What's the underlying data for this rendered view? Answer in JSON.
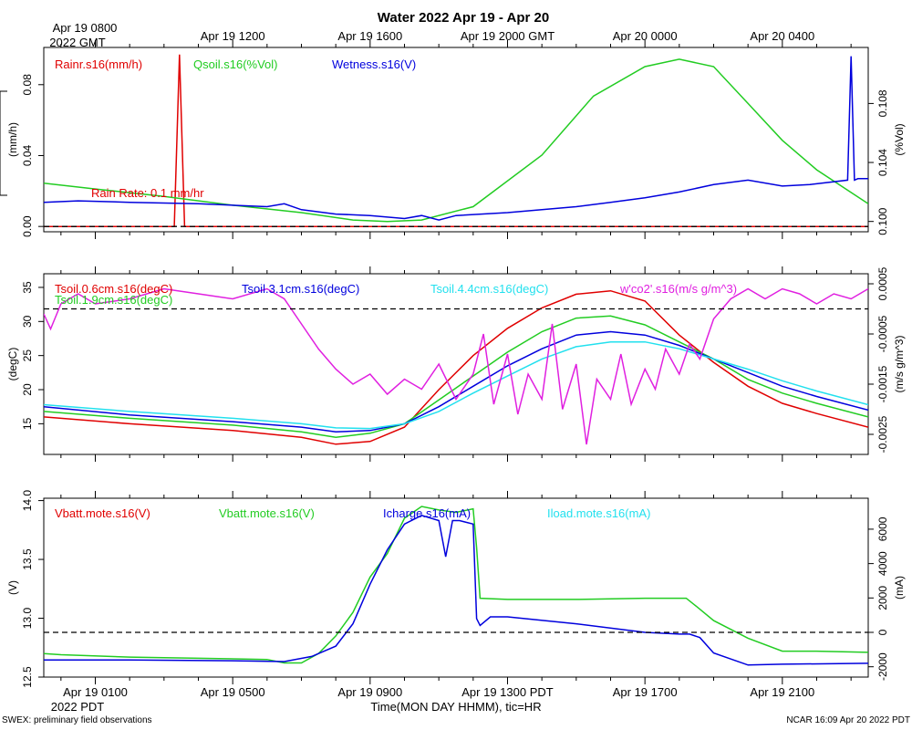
{
  "title": "Water 2022 Apr 19 - Apr 20",
  "top_axis": {
    "first_label_line1": "Apr 19 0800",
    "first_label_line2": "2022 GMT",
    "labels": [
      "Apr 19 1200",
      "Apr 19 1600",
      "Apr 19 2000 GMT",
      "Apr 20 0000",
      "Apr 20 0400"
    ]
  },
  "bottom_axis": {
    "labels": [
      "Apr 19 0100",
      "Apr 19 0500",
      "Apr 19 0900",
      "Apr 19 1300 PDT",
      "Apr 19 1700",
      "Apr 19 2100"
    ],
    "year_label": "2022 PDT",
    "xlabel": "Time(MON DAY HHMM), tic=HR"
  },
  "footer": {
    "left": "SWEX: preliminary field observations",
    "right": "NCAR 16:09 Apr 20 2022 PDT"
  },
  "colors": {
    "red": "#e00000",
    "green": "#22cc22",
    "blue": "#0000dd",
    "cyan": "#22e0ee",
    "magenta": "#e020e0",
    "black": "#000000"
  },
  "chart_data": [
    {
      "type": "line",
      "title": "Water panel",
      "x_range_hours_pdt": [
        22.5,
        46.5
      ],
      "left_axis": {
        "label": "(mm/h)",
        "ticks": [
          "0.00",
          "0.04",
          "0.08"
        ],
        "tick_values": [
          0.0,
          0.04,
          0.08
        ],
        "range": [
          -0.003,
          0.101
        ]
      },
      "right_axis": {
        "label": "(%Vol)",
        "ticks": [
          "0.100",
          "0.104",
          "0.108"
        ],
        "tick_values": [
          0.1,
          0.104,
          0.108
        ],
        "range": [
          0.0993,
          0.1118
        ]
      },
      "annotation": "Rain Rate: 0.1 mm/hr",
      "series": [
        {
          "name": "Rainr.s16(mm/h)",
          "color": "red",
          "axis": "left",
          "x": [
            22.5,
            26.3,
            26.45,
            26.6,
            26.75,
            46.5
          ],
          "values": [
            0,
            0,
            0.097,
            0,
            0,
            0
          ]
        },
        {
          "name": "Qsoil.s16(%Vol)",
          "color": "green",
          "axis": "right",
          "x": [
            22.5,
            24,
            26,
            28,
            30,
            31.5,
            32.5,
            33.5,
            35,
            37,
            38.5,
            40,
            41,
            42,
            43,
            44,
            45,
            46.5
          ],
          "values": [
            0.1026,
            0.1022,
            0.1017,
            0.1011,
            0.1006,
            0.1001,
            0.1,
            0.1001,
            0.101,
            0.1045,
            0.1085,
            0.1105,
            0.111,
            0.1105,
            0.108,
            0.1055,
            0.1035,
            0.1012
          ]
        },
        {
          "name": "Wetness.s16(V)",
          "color": "blue",
          "axis": "right",
          "x": [
            22.5,
            23.5,
            25,
            27,
            29,
            29.5,
            30,
            31,
            32,
            33,
            33.5,
            34,
            34.5,
            36,
            37,
            38,
            39,
            40,
            41,
            42,
            43,
            44,
            44.8,
            45.9,
            46.0,
            46.1,
            46.2,
            46.5
          ],
          "values": [
            0.1013,
            0.1014,
            0.1013,
            0.1012,
            0.101,
            0.1012,
            0.1008,
            0.1005,
            0.1004,
            0.1002,
            0.1004,
            0.1001,
            0.1004,
            0.1006,
            0.1008,
            0.101,
            0.1013,
            0.1016,
            0.102,
            0.1025,
            0.1028,
            0.1024,
            0.1025,
            0.1028,
            0.1112,
            0.1028,
            0.1029,
            0.1029
          ]
        }
      ],
      "reference_line": {
        "axis": "left",
        "value": 0.0,
        "color": "black",
        "style": "dashed"
      }
    },
    {
      "type": "line",
      "title": "Soil temperature panel",
      "x_range_hours_pdt": [
        22.5,
        46.5
      ],
      "left_axis": {
        "label": "(degC)",
        "ticks": [
          "15",
          "20",
          "25",
          "30",
          "35"
        ],
        "tick_values": [
          15,
          20,
          25,
          30,
          35
        ],
        "range": [
          10.5,
          37
        ]
      },
      "right_axis": {
        "label": "(m/s g/m^3)",
        "ticks": [
          "-0.0025",
          "-0.0015",
          "-0.0005",
          "0.0005"
        ],
        "tick_values": [
          -0.0025,
          -0.0015,
          -0.0005,
          0.0005
        ],
        "range": [
          -0.0029,
          0.0007
        ]
      },
      "series": [
        {
          "name": "Tsoil.0.6cm.s16(degC)",
          "color": "red",
          "axis": "left",
          "x": [
            22.5,
            25,
            28,
            30,
            31,
            32,
            33,
            34,
            35,
            36,
            37,
            38,
            39,
            40,
            41,
            42,
            43,
            44,
            45,
            46.5
          ],
          "values": [
            16.0,
            15.0,
            14.0,
            13.0,
            12.0,
            12.4,
            14.5,
            20.0,
            25.0,
            29.0,
            32.0,
            34.0,
            34.5,
            33.0,
            28.0,
            24.0,
            20.5,
            18.0,
            16.5,
            14.5
          ]
        },
        {
          "name": "Tsoil.1.9cm.s16(degC)",
          "color": "green",
          "axis": "left",
          "x": [
            22.5,
            25,
            28,
            30,
            31,
            32,
            33,
            34,
            35,
            36,
            37,
            38,
            39,
            40,
            41,
            42,
            43,
            44,
            45,
            46.5
          ],
          "values": [
            16.8,
            15.8,
            14.8,
            13.8,
            13.0,
            13.6,
            15.0,
            18.5,
            22.0,
            25.5,
            28.5,
            30.5,
            30.8,
            29.5,
            27.0,
            24.5,
            21.5,
            19.5,
            18.0,
            16.0
          ]
        },
        {
          "name": "Tsoil.3.1cm.s16(degC)",
          "color": "blue",
          "axis": "left",
          "x": [
            22.5,
            25,
            28,
            30,
            31,
            32,
            33,
            34,
            35,
            36,
            37,
            38,
            39,
            40,
            41,
            42,
            43,
            44,
            45,
            46.5
          ],
          "values": [
            17.5,
            16.3,
            15.3,
            14.5,
            13.8,
            14.0,
            15.0,
            17.5,
            20.5,
            23.5,
            26.0,
            28.0,
            28.5,
            28.0,
            26.5,
            24.5,
            22.5,
            20.5,
            19.0,
            17.0
          ]
        },
        {
          "name": "Tsoil.4.4cm.s16(degC)",
          "color": "cyan",
          "axis": "left",
          "x": [
            22.5,
            25,
            28,
            30,
            31,
            32,
            33,
            34,
            35,
            36,
            37,
            38,
            39,
            40,
            41,
            42,
            43,
            44,
            45,
            46.5
          ],
          "values": [
            17.8,
            16.8,
            15.8,
            15.0,
            14.4,
            14.3,
            15.0,
            16.8,
            19.5,
            22.0,
            24.5,
            26.3,
            27.0,
            27.0,
            26.0,
            24.5,
            23.0,
            21.3,
            19.8,
            17.8
          ]
        },
        {
          "name": "w'co2'.s16(m/s g/m^3)",
          "color": "magenta",
          "axis": "right",
          "x": [
            22.5,
            22.7,
            23,
            23.5,
            24,
            25,
            26,
            27,
            28,
            29,
            29.5,
            30,
            30.5,
            31,
            31.5,
            32,
            32.5,
            33,
            33.5,
            34,
            34.5,
            35,
            35.3,
            35.6,
            36,
            36.3,
            36.6,
            37,
            37.3,
            37.6,
            38,
            38.3,
            38.6,
            39,
            39.3,
            39.6,
            40,
            40.3,
            40.6,
            41,
            41.3,
            41.6,
            42,
            42.5,
            43,
            43.5,
            44,
            44.5,
            45,
            45.5,
            46,
            46.5
          ],
          "values": [
            -0.0001,
            -0.0004,
            0.0001,
            0.0003,
            0.0001,
            0.0002,
            0.0004,
            0.0003,
            0.0002,
            0.0004,
            0.0002,
            -0.0003,
            -0.0008,
            -0.0012,
            -0.0015,
            -0.0013,
            -0.0017,
            -0.0014,
            -0.0016,
            -0.0011,
            -0.0018,
            -0.0013,
            -0.0005,
            -0.0019,
            -0.0009,
            -0.0021,
            -0.0013,
            -0.0018,
            -0.0003,
            -0.002,
            -0.0011,
            -0.0027,
            -0.0014,
            -0.0018,
            -0.0009,
            -0.0019,
            -0.0012,
            -0.0016,
            -0.0008,
            -0.0013,
            -0.0007,
            -0.001,
            -0.0002,
            0.0002,
            0.0004,
            0.0002,
            0.0004,
            0.0003,
            0.0001,
            0.0003,
            0.0002,
            0.0004
          ]
        }
      ],
      "reference_line": {
        "axis": "right",
        "value": 0.0,
        "color": "black",
        "style": "dashed"
      }
    },
    {
      "type": "line",
      "title": "Battery panel",
      "x_range_hours_pdt": [
        22.5,
        46.5
      ],
      "left_axis": {
        "label": "(V)",
        "ticks": [
          "12.5",
          "13.0",
          "13.5",
          "14.0"
        ],
        "tick_values": [
          12.5,
          13.0,
          13.5,
          14.0
        ],
        "range": [
          12.5,
          14.02
        ]
      },
      "right_axis": {
        "label": "(mA)",
        "ticks": [
          "-2000",
          "0",
          "2000",
          "4000",
          "6000"
        ],
        "tick_values": [
          -2000,
          0,
          2000,
          4000,
          6000
        ],
        "range": [
          -2600,
          7800
        ]
      },
      "series": [
        {
          "name": "Vbatt.mote.s16(V)",
          "color": "red",
          "axis": "left",
          "x": [
            22.5,
            46.5
          ],
          "values": [
            null,
            null
          ]
        },
        {
          "name": "Vbatt.mote.s16(V)",
          "color": "green",
          "axis": "left",
          "x": [
            22.5,
            23,
            25,
            27,
            29,
            29.5,
            30,
            30.5,
            31,
            31.5,
            32,
            32.5,
            33,
            33.5,
            34,
            34.5,
            35,
            35.1,
            35.2,
            36,
            38,
            40,
            41.2,
            41.5,
            42,
            43,
            44,
            45,
            46.5
          ],
          "values": [
            12.7,
            12.69,
            12.67,
            12.66,
            12.65,
            12.62,
            12.62,
            12.7,
            12.85,
            13.05,
            13.35,
            13.55,
            13.85,
            13.95,
            13.92,
            13.9,
            13.93,
            13.6,
            13.17,
            13.16,
            13.16,
            13.17,
            13.17,
            13.1,
            12.98,
            12.83,
            12.72,
            12.72,
            12.71
          ]
        },
        {
          "name": "Icharge.s16(mA)",
          "color": "blue",
          "axis": "right",
          "x": [
            22.5,
            25,
            28,
            29.5,
            30.3,
            31,
            31.5,
            32,
            32.5,
            33,
            33.5,
            34,
            34.2,
            34.4,
            34.6,
            35,
            35.1,
            35.2,
            35.5,
            36,
            38,
            40,
            41,
            41.3,
            41.6,
            42,
            43,
            44,
            46.5
          ],
          "values": [
            -1600,
            -1600,
            -1650,
            -1700,
            -1400,
            -800,
            500,
            2800,
            4800,
            6300,
            6800,
            6500,
            4400,
            6500,
            6500,
            6300,
            800,
            400,
            900,
            900,
            500,
            0,
            -100,
            -100,
            -300,
            -1200,
            -1900,
            -1850,
            -1800
          ]
        },
        {
          "name": "Iload.mote.s16(mA)",
          "color": "cyan",
          "axis": "right",
          "x": [
            22.5,
            46.5
          ],
          "values": [
            null,
            null
          ]
        }
      ],
      "reference_line": {
        "axis": "right",
        "value": 0,
        "color": "black",
        "style": "dashed"
      }
    }
  ]
}
